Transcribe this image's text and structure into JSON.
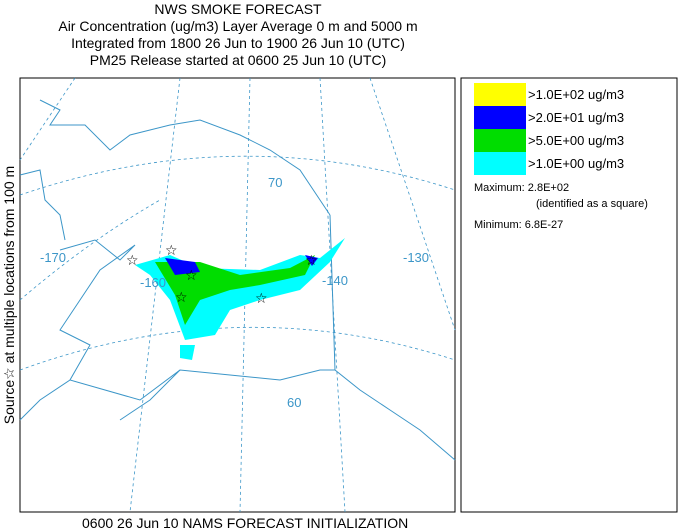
{
  "header": {
    "lines": [
      "NWS SMOKE FORECAST",
      "Air Concentration (ug/m3) Layer Average    0 m and  5000 m",
      "Integrated from 1800 26 Jun to 1900 26 Jun 10 (UTC)",
      "PM25 Release started at 0600 25 Jun 10 (UTC)"
    ]
  },
  "side_label": "Source☆ at multiple locations from  100 m",
  "legend": {
    "items": [
      {
        "label": ">1.0E+02 ug/m3",
        "color": "#ffff00"
      },
      {
        "label": ">2.0E+01 ug/m3",
        "color": "#0000ff"
      },
      {
        "label": ">5.0E+00 ug/m3",
        "color": "#00dd00"
      },
      {
        "label": ">1.0E+00 ug/m3",
        "color": "#00ffff"
      }
    ],
    "maximum": "Maximum: 2.8E+02",
    "maximum_note": "(identified as a square)",
    "minimum": "Minimum: 6.8E-27"
  },
  "map": {
    "labels": [
      "-170",
      "-160",
      "-140",
      "-130",
      "70",
      "60"
    ]
  },
  "footer": "0600 26 Jun 10 NAMS FORECAST INITIALIZATION"
}
